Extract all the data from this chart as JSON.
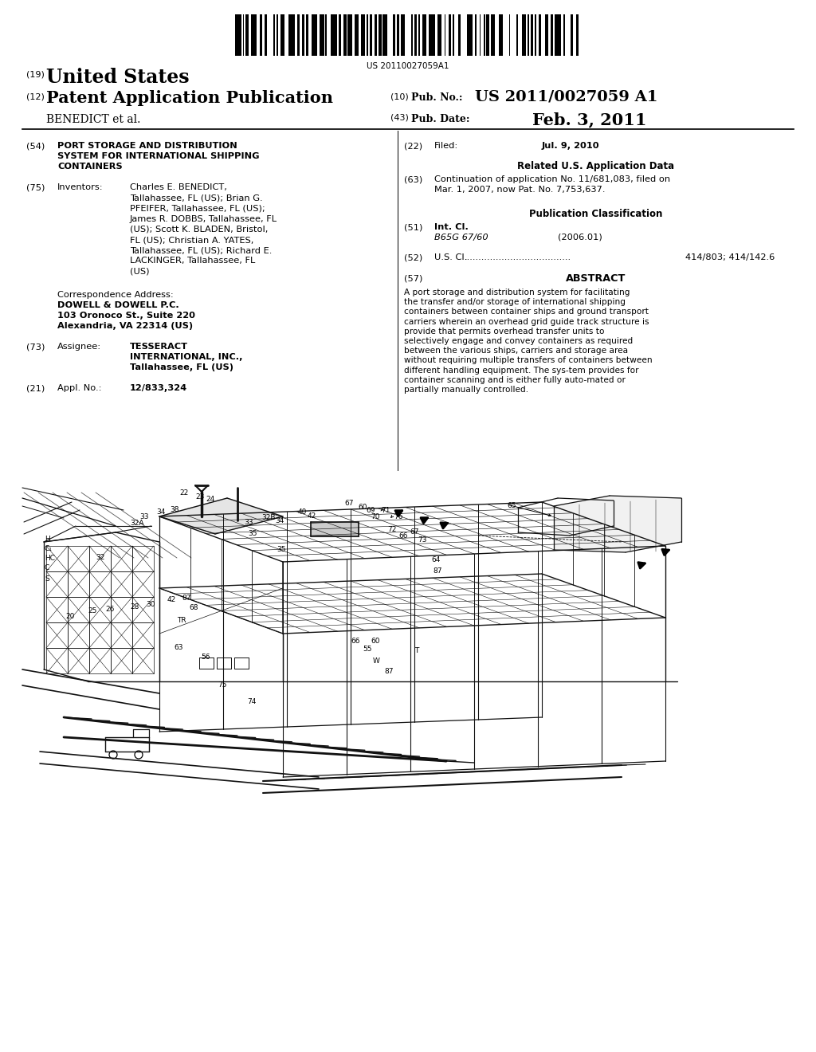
{
  "background_color": "#ffffff",
  "page_width": 10.24,
  "page_height": 13.2,
  "barcode_text": "US 20110027059A1",
  "header": {
    "number_19": "(19)",
    "country": "United States",
    "number_12": "(12)",
    "pub_type": "Patent Application Publication",
    "inventors_last": "BENEDICT et al.",
    "number_10": "(10)",
    "pub_no_label": "Pub. No.:",
    "pub_no": "US 2011/0027059 A1",
    "number_43": "(43)",
    "pub_date_label": "Pub. Date:",
    "pub_date": "Feb. 3, 2011"
  },
  "left_col": {
    "field_54_num": "(54)",
    "field_54_title": "PORT STORAGE AND DISTRIBUTION\nSYSTEM FOR INTERNATIONAL SHIPPING\nCONTAINERS",
    "field_75_num": "(75)",
    "field_75_label": "Inventors:",
    "field_75_text": "Charles E. BENEDICT,\nTallahassee, FL (US); Brian G.\nPFEIFER, Tallahassee, FL (US);\nJames R. DOBBS, Tallahassee, FL\n(US); Scott K. BLADEN, Bristol,\nFL (US); Christian A. YATES,\nTallahassee, FL (US); Richard E.\nLACKINGER, Tallahassee, FL\n(US)",
    "corr_label": "Correspondence Address:",
    "corr_name": "DOWELL & DOWELL P.C.",
    "corr_addr1": "103 Oronoco St., Suite 220",
    "corr_addr2": "Alexandria, VA 22314 (US)",
    "field_73_num": "(73)",
    "field_73_label": "Assignee:",
    "field_73_text": "TESSERACT\nINTERNATIONAL, INC.,\nTallahassee, FL (US)",
    "field_21_num": "(21)",
    "field_21_label": "Appl. No.:",
    "field_21_text": "12/833,324"
  },
  "right_col": {
    "field_22_num": "(22)",
    "field_22_label": "Filed:",
    "field_22_text": "Jul. 9, 2010",
    "related_header": "Related U.S. Application Data",
    "field_63_num": "(63)",
    "field_63_text": "Continuation of application No. 11/681,083, filed on\nMar. 1, 2007, now Pat. No. 7,753,637.",
    "pub_class_header": "Publication Classification",
    "field_51_num": "(51)",
    "field_51_label": "Int. Cl.",
    "field_51_class": "B65G 67/60",
    "field_51_year": "(2006.01)",
    "field_52_num": "(52)",
    "field_52_label": "U.S. Cl.",
    "field_52_dots": ".....................................",
    "field_52_text": "414/803; 414/142.6",
    "field_57_num": "(57)",
    "field_57_label": "ABSTRACT",
    "abstract_text": "A port storage and distribution system for facilitating the transfer and/or storage of international shipping containers between container ships and ground transport carriers wherein an overhead grid guide track structure is provide that permits overhead transfer units to selectively engage and convey containers as required between the various ships, carriers and storage area without requiring multiple transfers of containers between different handling equipment. The sys-tem provides for container scanning and is either fully auto-mated or partially manually controlled."
  }
}
